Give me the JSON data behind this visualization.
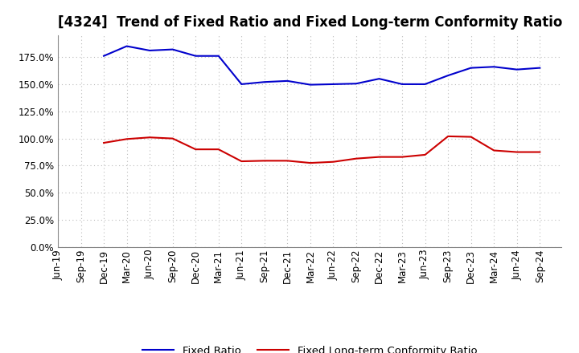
{
  "title": "[4324]  Trend of Fixed Ratio and Fixed Long-term Conformity Ratio",
  "x_labels": [
    "Jun-19",
    "Sep-19",
    "Dec-19",
    "Mar-20",
    "Jun-20",
    "Sep-20",
    "Dec-20",
    "Mar-21",
    "Jun-21",
    "Sep-21",
    "Dec-21",
    "Mar-22",
    "Jun-22",
    "Sep-22",
    "Dec-22",
    "Mar-23",
    "Jun-23",
    "Sep-23",
    "Dec-23",
    "Mar-24",
    "Jun-24",
    "Sep-24"
  ],
  "fixed_ratio": [
    null,
    null,
    176.0,
    185.0,
    181.0,
    182.0,
    176.0,
    176.0,
    150.0,
    152.0,
    153.0,
    149.5,
    150.0,
    150.5,
    155.0,
    150.0,
    150.0,
    158.0,
    165.0,
    166.0,
    163.5,
    165.0
  ],
  "fixed_lt_ratio": [
    null,
    null,
    96.0,
    99.5,
    101.0,
    100.0,
    90.0,
    90.0,
    79.0,
    79.5,
    79.5,
    77.5,
    78.5,
    81.5,
    83.0,
    83.0,
    85.0,
    102.0,
    101.5,
    89.0,
    87.5,
    87.5
  ],
  "fixed_ratio_color": "#0000CC",
  "fixed_lt_ratio_color": "#CC0000",
  "ylim": [
    0,
    195
  ],
  "yticks": [
    0.0,
    25.0,
    50.0,
    75.0,
    100.0,
    125.0,
    150.0,
    175.0
  ],
  "background_color": "#FFFFFF",
  "plot_bg_color": "#FFFFFF",
  "grid_color": "#BBBBBB",
  "legend_fixed_ratio": "Fixed Ratio",
  "legend_fixed_lt_ratio": "Fixed Long-term Conformity Ratio",
  "title_fontsize": 12,
  "tick_fontsize": 8.5,
  "legend_fontsize": 9.5
}
